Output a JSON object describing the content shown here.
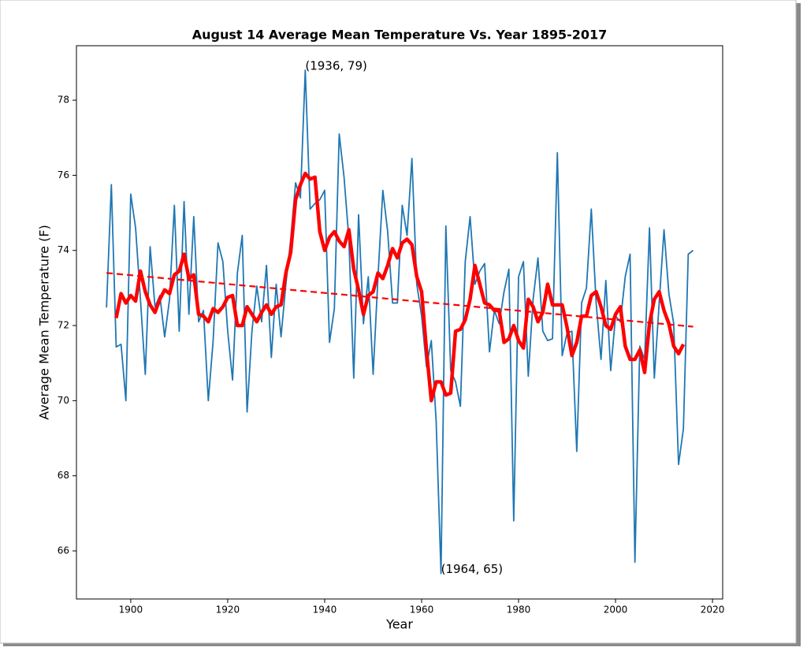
{
  "chart_data": {
    "type": "line",
    "title": "August 14 Average Mean Temperature Vs. Year 1895-2017",
    "xlabel": "Year",
    "ylabel": "Average Mean Temperature (F)",
    "xlim": [
      1888.8,
      2022.1
    ],
    "ylim": [
      64.72,
      79.45
    ],
    "xticks": [
      1900,
      1920,
      1940,
      1960,
      1980,
      2000,
      2020
    ],
    "yticks": [
      66,
      68,
      70,
      72,
      74,
      76,
      78
    ],
    "grid": false,
    "series": [
      {
        "color": "#1f77b4",
        "style": "solid",
        "width": 1.8,
        "x": [
          1895,
          1896,
          1897,
          1898,
          1899,
          1900,
          1901,
          1902,
          1903,
          1904,
          1905,
          1906,
          1907,
          1908,
          1909,
          1910,
          1911,
          1912,
          1913,
          1914,
          1915,
          1916,
          1917,
          1918,
          1919,
          1920,
          1921,
          1922,
          1923,
          1924,
          1925,
          1926,
          1927,
          1928,
          1929,
          1930,
          1931,
          1932,
          1933,
          1934,
          1935,
          1936,
          1937,
          1938,
          1939,
          1940,
          1941,
          1942,
          1943,
          1944,
          1945,
          1946,
          1947,
          1948,
          1949,
          1950,
          1951,
          1952,
          1953,
          1954,
          1955,
          1956,
          1957,
          1958,
          1959,
          1960,
          1961,
          1962,
          1963,
          1964,
          1965,
          1966,
          1967,
          1968,
          1969,
          1970,
          1971,
          1972,
          1973,
          1974,
          1975,
          1976,
          1977,
          1978,
          1979,
          1980,
          1981,
          1982,
          1983,
          1984,
          1985,
          1986,
          1987,
          1988,
          1989,
          1990,
          1991,
          1992,
          1993,
          1994,
          1995,
          1996,
          1997,
          1998,
          1999,
          2000,
          2001,
          2002,
          2003,
          2004,
          2005,
          2006,
          2007,
          2008,
          2009,
          2010,
          2011,
          2012,
          2013,
          2014,
          2015,
          2016
        ],
        "values": [
          72.48,
          75.75,
          71.43,
          71.5,
          70.0,
          75.5,
          74.6,
          72.7,
          70.7,
          74.1,
          72.5,
          72.8,
          71.7,
          72.7,
          75.2,
          71.85,
          75.3,
          72.3,
          74.9,
          72.1,
          72.4,
          70.0,
          71.6,
          74.2,
          73.7,
          71.85,
          70.55,
          73.4,
          74.4,
          69.7,
          71.85,
          73.05,
          72.1,
          73.6,
          71.15,
          73.1,
          71.7,
          73.1,
          74.3,
          75.8,
          75.4,
          78.8,
          75.1,
          75.25,
          75.35,
          75.6,
          71.55,
          72.45,
          77.1,
          75.95,
          74.3,
          70.6,
          74.95,
          72.05,
          73.3,
          70.7,
          73.3,
          75.6,
          74.5,
          72.6,
          72.6,
          75.2,
          74.4,
          76.45,
          73.1,
          72.25,
          70.9,
          71.6,
          69.45,
          65.4,
          74.65,
          70.8,
          70.5,
          69.85,
          73.7,
          74.9,
          73.1,
          73.45,
          73.65,
          71.3,
          72.4,
          72.05,
          72.9,
          73.5,
          66.8,
          73.3,
          73.7,
          70.65,
          72.7,
          73.8,
          71.85,
          71.6,
          71.65,
          76.6,
          71.2,
          71.8,
          71.85,
          68.65,
          72.6,
          73.0,
          75.1,
          72.6,
          71.1,
          73.2,
          70.8,
          72.25,
          72.1,
          73.3,
          73.9,
          65.7,
          71.45,
          71.1,
          74.6,
          70.6,
          72.6,
          74.55,
          72.85,
          72.05,
          68.3,
          69.25,
          73.9,
          74.0
        ]
      },
      {
        "color": "#ff0000",
        "style": "solid",
        "width": 4.5,
        "x": [
          1897,
          1898,
          1899,
          1900,
          1901,
          1902,
          1903,
          1904,
          1905,
          1906,
          1907,
          1908,
          1909,
          1910,
          1911,
          1912,
          1913,
          1914,
          1915,
          1916,
          1917,
          1918,
          1919,
          1920,
          1921,
          1922,
          1923,
          1924,
          1925,
          1926,
          1927,
          1928,
          1929,
          1930,
          1931,
          1932,
          1933,
          1934,
          1935,
          1936,
          1937,
          1938,
          1939,
          1940,
          1941,
          1942,
          1943,
          1944,
          1945,
          1946,
          1947,
          1948,
          1949,
          1950,
          1951,
          1952,
          1953,
          1954,
          1955,
          1956,
          1957,
          1958,
          1959,
          1960,
          1961,
          1962,
          1963,
          1964,
          1965,
          1966,
          1967,
          1968,
          1969,
          1970,
          1971,
          1972,
          1973,
          1974,
          1975,
          1976,
          1977,
          1978,
          1979,
          1980,
          1981,
          1982,
          1983,
          1984,
          1985,
          1986,
          1987,
          1988,
          1989,
          1990,
          1991,
          1992,
          1993,
          1994,
          1995,
          1996,
          1997,
          1998,
          1999,
          2000,
          2001,
          2002,
          2003,
          2004,
          2005,
          2006,
          2007,
          2008,
          2009,
          2010,
          2011,
          2012,
          2013,
          2014
        ],
        "values": [
          72.2,
          72.85,
          72.6,
          72.8,
          72.65,
          73.45,
          72.9,
          72.55,
          72.35,
          72.7,
          72.95,
          72.85,
          73.35,
          73.45,
          73.9,
          73.25,
          73.35,
          72.3,
          72.25,
          72.1,
          72.45,
          72.35,
          72.5,
          72.75,
          72.8,
          72.0,
          72.0,
          72.5,
          72.3,
          72.1,
          72.35,
          72.55,
          72.3,
          72.5,
          72.55,
          73.4,
          73.95,
          75.35,
          75.75,
          76.05,
          75.9,
          75.95,
          74.5,
          74.0,
          74.35,
          74.5,
          74.25,
          74.1,
          74.55,
          73.5,
          72.95,
          72.3,
          72.8,
          72.9,
          73.4,
          73.25,
          73.6,
          74.05,
          73.8,
          74.2,
          74.3,
          74.15,
          73.3,
          72.9,
          71.35,
          70.0,
          70.5,
          70.5,
          70.15,
          70.2,
          71.85,
          71.9,
          72.15,
          72.7,
          73.6,
          73.1,
          72.6,
          72.55,
          72.4,
          72.4,
          71.55,
          71.65,
          72.0,
          71.6,
          71.4,
          72.7,
          72.5,
          72.1,
          72.35,
          73.1,
          72.55,
          72.55,
          72.55,
          71.95,
          71.2,
          71.55,
          72.25,
          72.25,
          72.8,
          72.9,
          72.5,
          72.0,
          71.9,
          72.3,
          72.5,
          71.45,
          71.1,
          71.1,
          71.35,
          70.75,
          72.05,
          72.7,
          72.9,
          72.4,
          72.05,
          71.45,
          71.25,
          71.5
        ]
      },
      {
        "color": "#ff0000",
        "style": "dashed",
        "width": 2.2,
        "x": [
          1895,
          2016
        ],
        "values": [
          73.4,
          71.97
        ]
      }
    ],
    "annotations": [
      {
        "text": "(1936, 79)",
        "x": 1936
      },
      {
        "text": "(1964, 65)",
        "x": 1964
      }
    ]
  }
}
